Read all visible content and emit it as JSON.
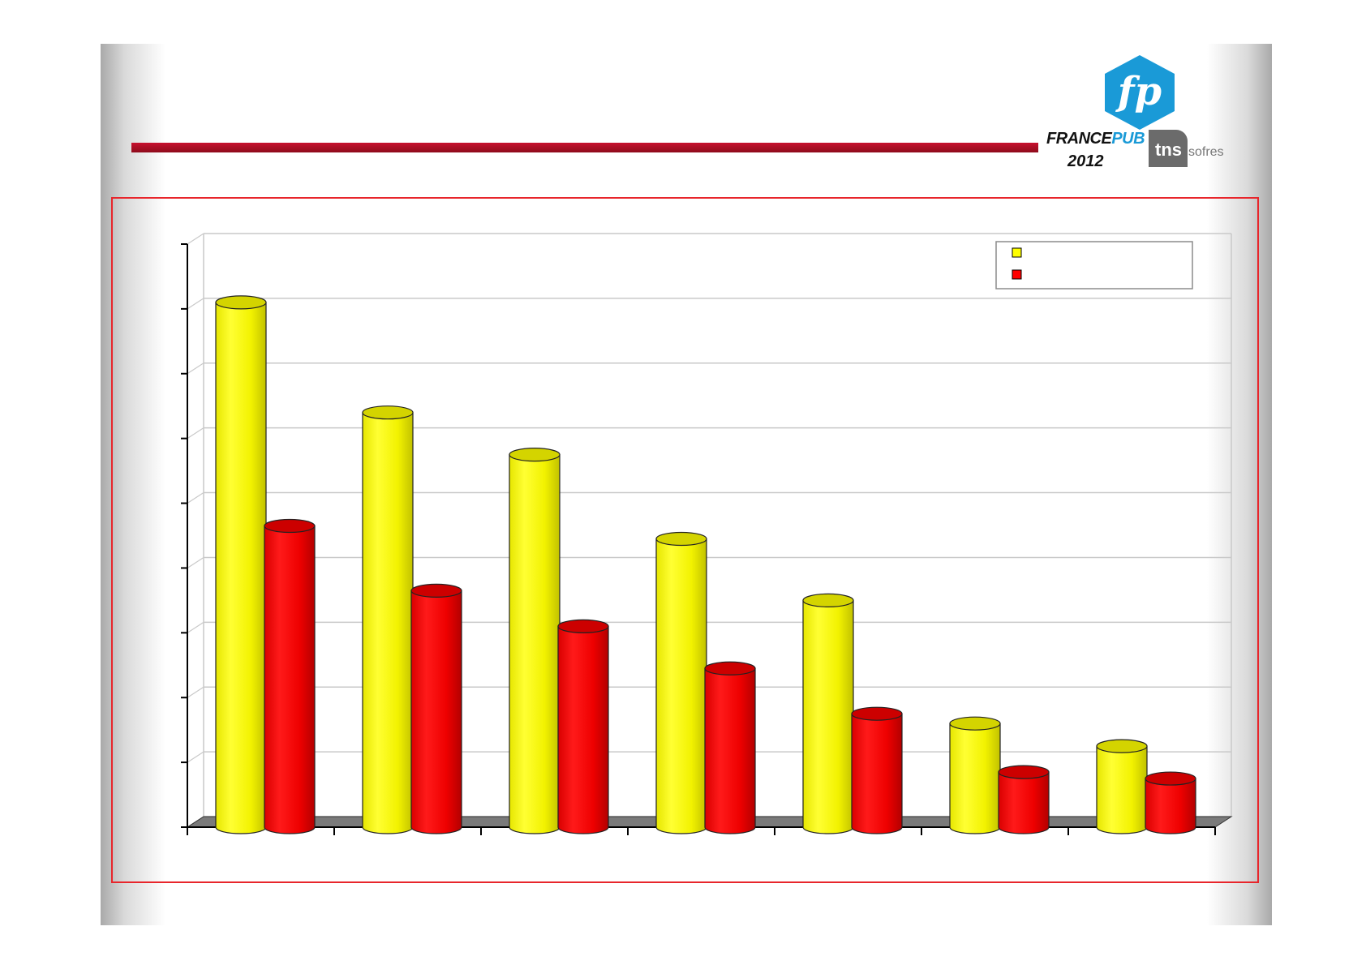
{
  "colors": {
    "series_1": "#ffff00",
    "series_2": "#ff0000",
    "brand_blue": "#1a9ad7",
    "rule_red": "#c8102e"
  },
  "logo": {
    "mark": "fp",
    "brand_prefix": "FRANCE",
    "brand_suffix": "PUB",
    "year": "2012",
    "partner_main": "tns",
    "partner_sub": "sofres"
  },
  "chart_data": {
    "type": "bar",
    "categories": [
      "",
      "",
      "",
      "",
      "",
      "",
      ""
    ],
    "series": [
      {
        "color": "#ffff00",
        "values": [
          8.1,
          6.4,
          5.75,
          4.45,
          3.5,
          1.6,
          1.25
        ]
      },
      {
        "color": "#ff0000",
        "values": [
          4.65,
          3.65,
          3.1,
          2.45,
          1.75,
          0.85,
          0.75
        ]
      }
    ],
    "ylim": [
      0,
      9
    ],
    "title": "",
    "xlabel": "",
    "ylabel": "",
    "grid": true,
    "legend_position": "top-right"
  }
}
